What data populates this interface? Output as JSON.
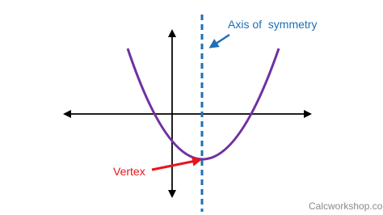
{
  "labels": {
    "axis_of_symmetry": "Axis of  symmetry",
    "vertex": "Vertex"
  },
  "watermark": "Calcworkshop.com"
}
